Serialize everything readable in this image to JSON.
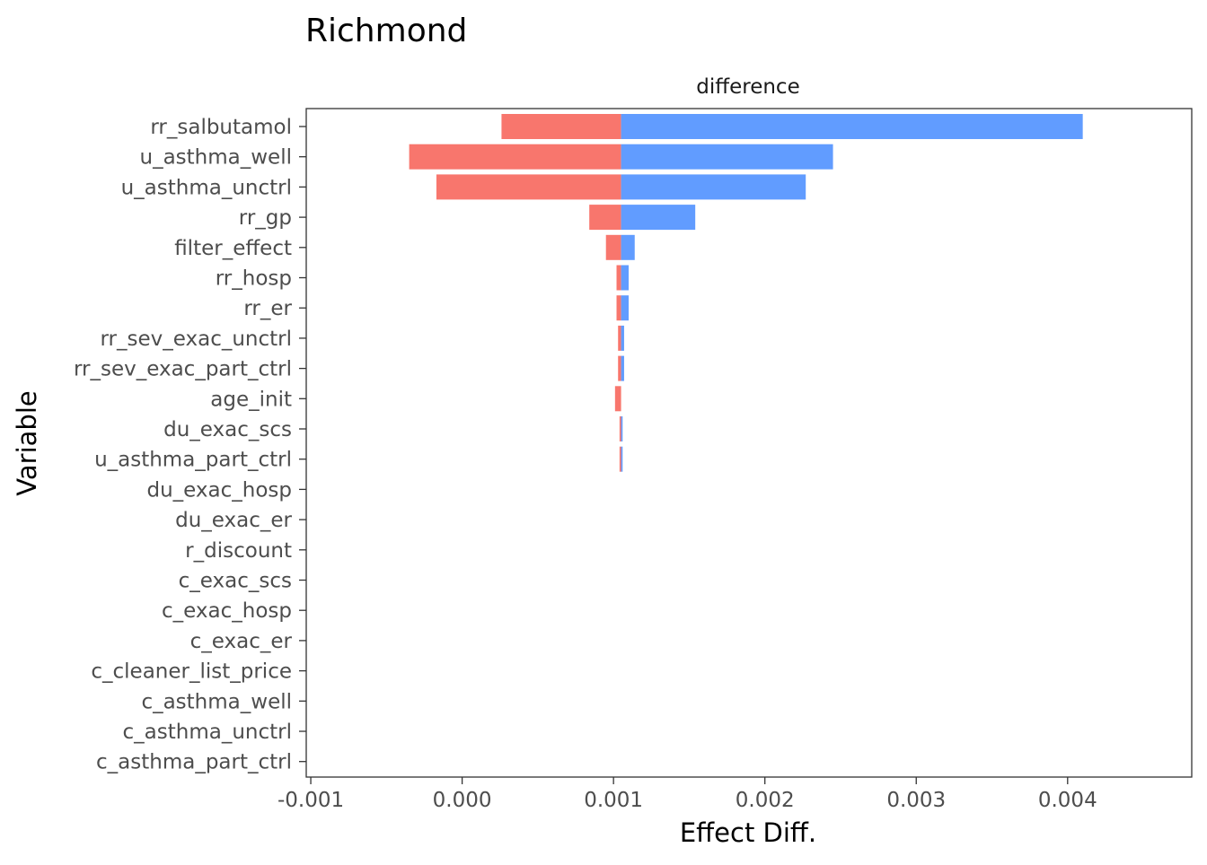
{
  "chart_data": {
    "type": "bar",
    "orientation": "horizontal",
    "style": "tornado",
    "title": "Richmond",
    "facet_label": "difference",
    "xlabel": "Effect Diff.",
    "ylabel": "Variable",
    "base_value": 0.00105,
    "xlim": [
      -0.00103,
      0.00482
    ],
    "x_ticks": [
      -0.001,
      0.0,
      0.001,
      0.002,
      0.003,
      0.004
    ],
    "x_tick_labels": [
      "-0.001",
      "0.000",
      "0.001",
      "0.002",
      "0.003",
      "0.004"
    ],
    "grid": false,
    "categories": [
      "rr_salbutamol",
      "u_asthma_well",
      "u_asthma_unctrl",
      "rr_gp",
      "filter_effect",
      "rr_hosp",
      "rr_er",
      "rr_sev_exac_unctrl",
      "rr_sev_exac_part_ctrl",
      "age_init",
      "du_exac_scs",
      "u_asthma_part_ctrl",
      "du_exac_hosp",
      "du_exac_er",
      "r_discount",
      "c_exac_scs",
      "c_exac_hosp",
      "c_exac_er",
      "c_cleaner_list_price",
      "c_asthma_well",
      "c_asthma_unctrl",
      "c_asthma_part_ctrl"
    ],
    "series": [
      {
        "color": "#F8766D",
        "values": [
          0.00026,
          -0.00035,
          -0.00017,
          0.00084,
          0.00095,
          0.00102,
          0.00102,
          0.00103,
          0.00103,
          0.00101,
          0.00104,
          0.00104,
          0.00105,
          0.00105,
          0.00105,
          0.00105,
          0.00105,
          0.00105,
          0.00105,
          0.00105,
          0.00105,
          0.00105
        ]
      },
      {
        "color": "#619CFF",
        "values": [
          0.0041,
          0.00245,
          0.00227,
          0.00154,
          0.00114,
          0.0011,
          0.0011,
          0.00107,
          0.00107,
          0.00105,
          0.00106,
          0.00106,
          0.00105,
          0.00105,
          0.00105,
          0.00105,
          0.00105,
          0.00105,
          0.00105,
          0.00105,
          0.00105,
          0.00105
        ]
      }
    ]
  }
}
